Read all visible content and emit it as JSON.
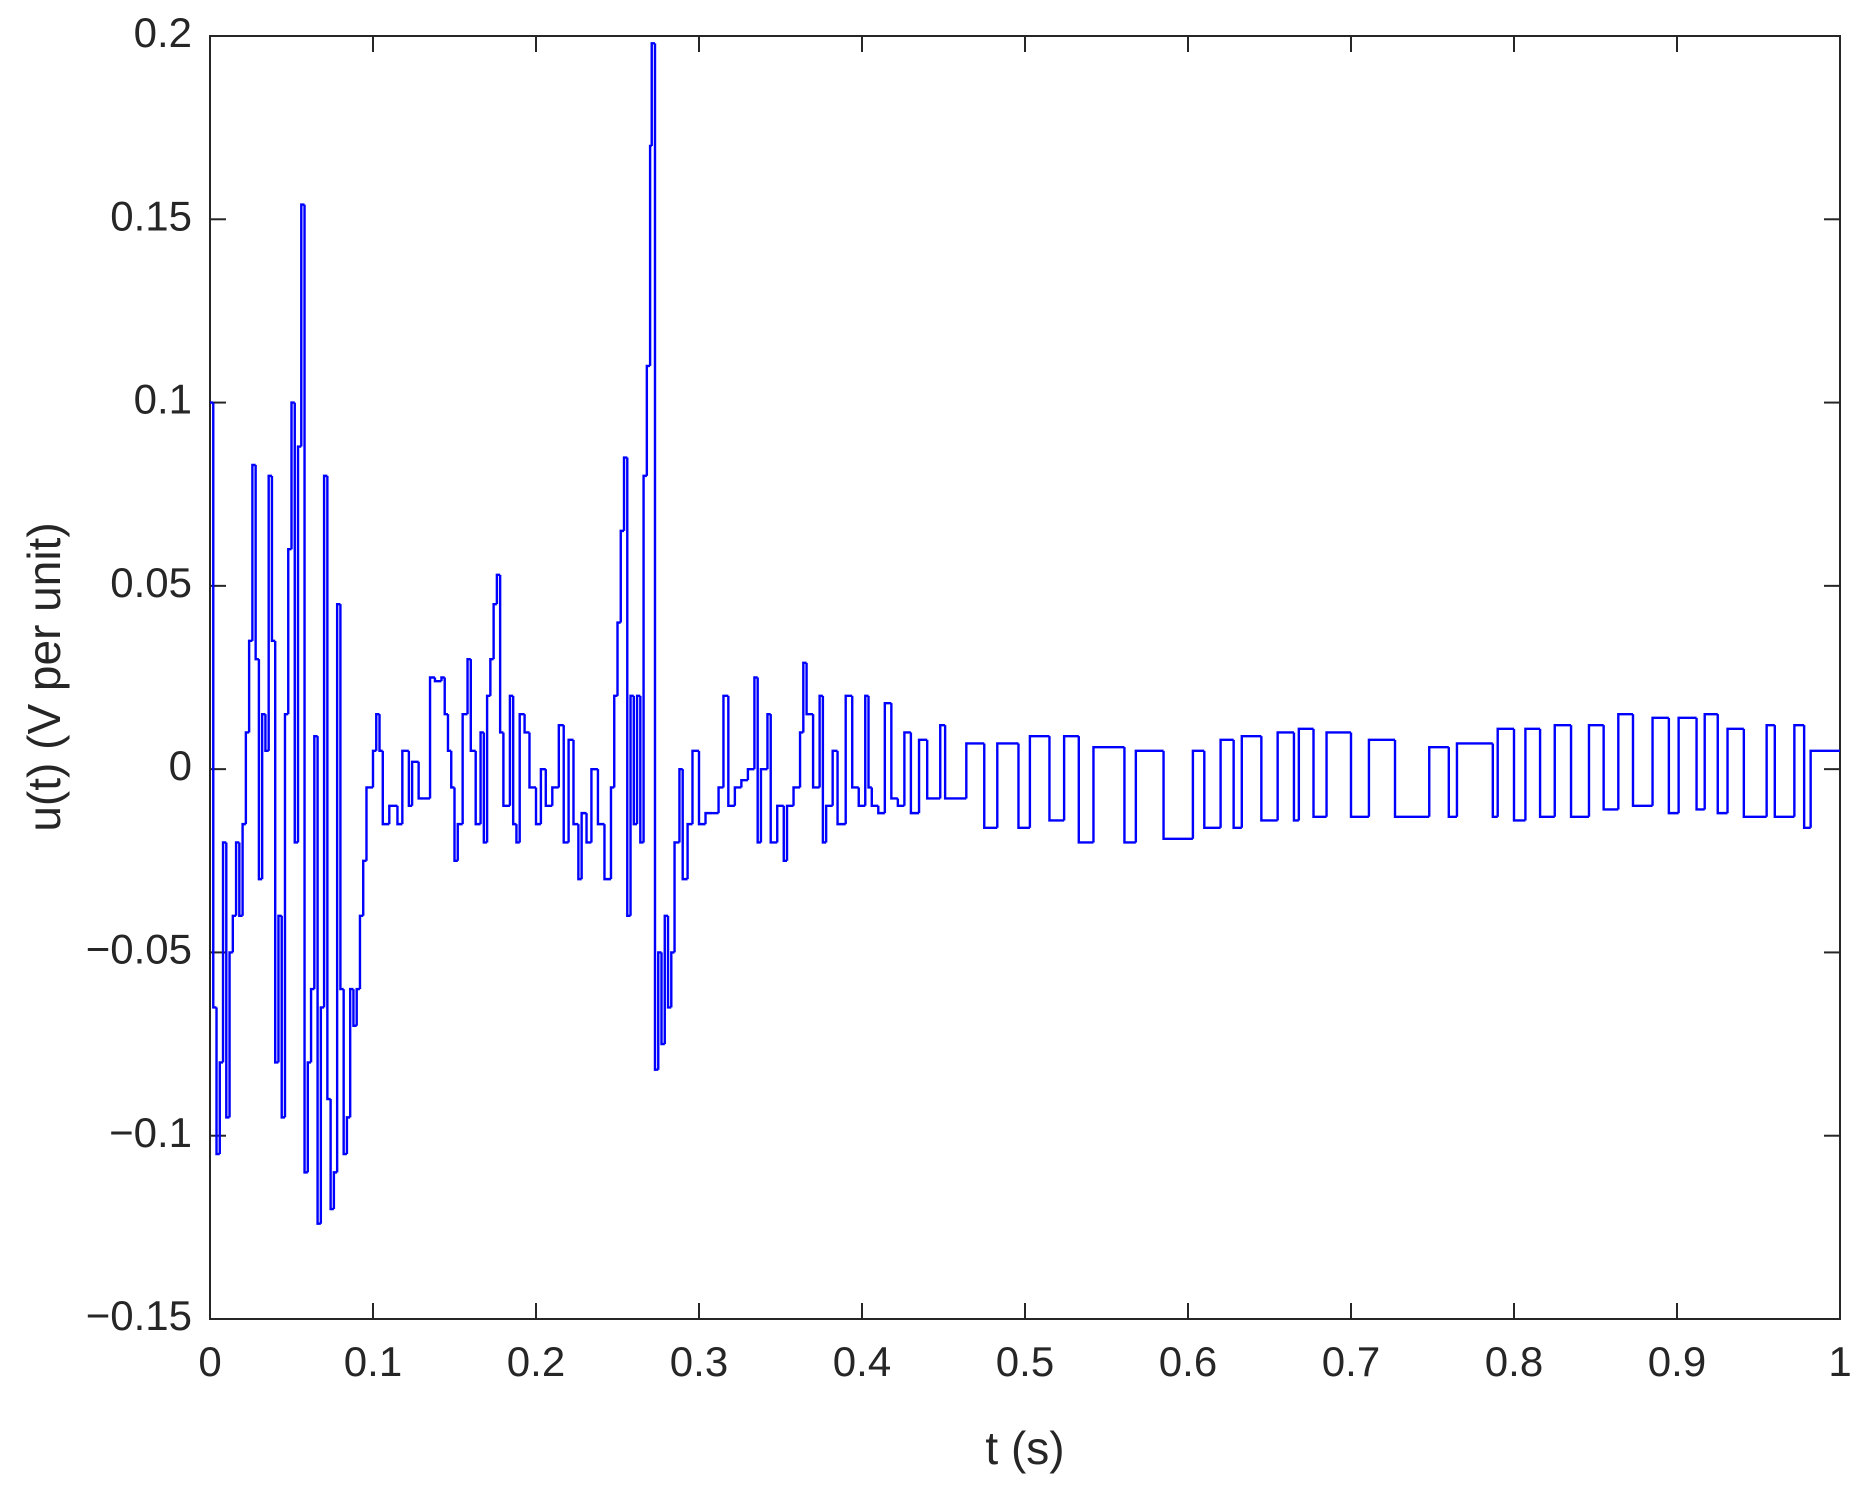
{
  "chart_data": {
    "type": "line",
    "drawstyle": "steps-post",
    "xlabel": "t (s)",
    "ylabel": "u(t) (V per unit)",
    "xlim": [
      0,
      1
    ],
    "ylim": [
      -0.15,
      0.2
    ],
    "xticks": [
      0,
      0.1,
      0.2,
      0.3,
      0.4,
      0.5,
      0.6,
      0.7,
      0.8,
      0.9,
      1
    ],
    "yticks": [
      {
        "value": -0.15,
        "label": "−0.15"
      },
      {
        "value": -0.1,
        "label": "−0.1"
      },
      {
        "value": -0.05,
        "label": "−0.05"
      },
      0,
      0.05,
      0.1,
      0.15,
      0.2
    ],
    "grid": false,
    "series": [
      {
        "color": "#0000ff",
        "x": [
          0,
          0.002,
          0.004,
          0.006,
          0.008,
          0.01,
          0.012,
          0.014,
          0.016,
          0.018,
          0.02,
          0.022,
          0.024,
          0.026,
          0.028,
          0.03,
          0.032,
          0.034,
          0.036,
          0.038,
          0.04,
          0.042,
          0.044,
          0.046,
          0.048,
          0.05,
          0.052,
          0.054,
          0.056,
          0.058,
          0.06,
          0.062,
          0.064,
          0.066,
          0.068,
          0.07,
          0.072,
          0.074,
          0.076,
          0.078,
          0.08,
          0.082,
          0.084,
          0.086,
          0.088,
          0.09,
          0.092,
          0.094,
          0.096,
          0.1,
          0.102,
          0.104,
          0.106,
          0.11,
          0.115,
          0.118,
          0.122,
          0.124,
          0.128,
          0.135,
          0.138,
          0.142,
          0.144,
          0.146,
          0.148,
          0.15,
          0.152,
          0.155,
          0.158,
          0.16,
          0.163,
          0.166,
          0.168,
          0.17,
          0.172,
          0.174,
          0.176,
          0.178,
          0.18,
          0.184,
          0.186,
          0.188,
          0.19,
          0.193,
          0.196,
          0.2,
          0.203,
          0.206,
          0.21,
          0.214,
          0.217,
          0.22,
          0.223,
          0.226,
          0.228,
          0.231,
          0.234,
          0.238,
          0.242,
          0.246,
          0.248,
          0.25,
          0.252,
          0.254,
          0.256,
          0.258,
          0.26,
          0.262,
          0.264,
          0.266,
          0.268,
          0.27,
          0.271,
          0.273,
          0.275,
          0.277,
          0.279,
          0.281,
          0.283,
          0.285,
          0.288,
          0.29,
          0.293,
          0.296,
          0.3,
          0.304,
          0.308,
          0.312,
          0.315,
          0.318,
          0.322,
          0.326,
          0.33,
          0.334,
          0.336,
          0.338,
          0.342,
          0.344,
          0.348,
          0.352,
          0.354,
          0.358,
          0.362,
          0.364,
          0.366,
          0.37,
          0.374,
          0.376,
          0.378,
          0.382,
          0.385,
          0.39,
          0.394,
          0.398,
          0.402,
          0.404,
          0.406,
          0.41,
          0.414,
          0.418,
          0.422,
          0.426,
          0.43,
          0.435,
          0.44,
          0.448,
          0.451,
          0.464,
          0.475,
          0.483,
          0.496,
          0.503,
          0.515,
          0.524,
          0.533,
          0.542,
          0.561,
          0.568,
          0.585,
          0.603,
          0.61,
          0.62,
          0.628,
          0.633,
          0.645,
          0.655,
          0.665,
          0.668,
          0.677,
          0.685,
          0.7,
          0.711,
          0.727,
          0.748,
          0.76,
          0.765,
          0.787,
          0.79,
          0.8,
          0.807,
          0.816,
          0.825,
          0.835,
          0.846,
          0.855,
          0.864,
          0.873,
          0.885,
          0.895,
          0.901,
          0.912,
          0.917,
          0.925,
          0.931,
          0.941,
          0.955,
          0.96,
          0.972,
          0.978,
          0.982
        ],
        "values": [
          0.1,
          -0.065,
          -0.105,
          -0.08,
          -0.02,
          -0.095,
          -0.05,
          -0.04,
          -0.02,
          -0.04,
          -0.015,
          0.01,
          0.035,
          0.083,
          0.03,
          -0.03,
          0.015,
          0.005,
          0.08,
          0.035,
          -0.08,
          -0.04,
          -0.095,
          0.015,
          0.06,
          0.1,
          -0.02,
          0.088,
          0.154,
          -0.11,
          -0.08,
          -0.06,
          0.009,
          -0.124,
          -0.065,
          0.08,
          -0.09,
          -0.12,
          -0.11,
          0.045,
          -0.06,
          -0.105,
          -0.095,
          -0.06,
          -0.07,
          -0.06,
          -0.04,
          -0.025,
          -0.005,
          0.005,
          0.015,
          0.005,
          -0.015,
          -0.01,
          -0.015,
          0.005,
          -0.01,
          0.002,
          -0.008,
          0.025,
          0.024,
          0.025,
          0.015,
          0.005,
          -0.005,
          -0.025,
          -0.015,
          0.015,
          0.03,
          0.005,
          -0.015,
          0.01,
          -0.02,
          0.02,
          0.03,
          0.045,
          0.053,
          0.01,
          -0.01,
          0.02,
          -0.015,
          -0.02,
          0.015,
          0.01,
          -0.005,
          -0.015,
          0.0,
          -0.01,
          -0.005,
          0.012,
          -0.02,
          0.008,
          -0.015,
          -0.03,
          -0.012,
          -0.02,
          0.0,
          -0.015,
          -0.03,
          -0.005,
          0.02,
          0.04,
          0.065,
          0.085,
          -0.04,
          0.02,
          -0.015,
          0.02,
          -0.02,
          0.08,
          0.11,
          0.17,
          0.198,
          -0.082,
          -0.05,
          -0.075,
          -0.04,
          -0.065,
          -0.05,
          -0.02,
          0.0,
          -0.03,
          -0.015,
          0.005,
          -0.015,
          -0.012,
          -0.012,
          -0.005,
          0.02,
          -0.01,
          -0.005,
          -0.003,
          0.0,
          0.025,
          -0.02,
          0.0,
          0.015,
          -0.02,
          -0.01,
          -0.025,
          -0.01,
          -0.005,
          0.01,
          0.029,
          0.015,
          -0.005,
          0.02,
          -0.02,
          -0.01,
          0.005,
          -0.015,
          0.02,
          -0.005,
          -0.01,
          0.02,
          -0.005,
          -0.01,
          -0.012,
          0.018,
          -0.008,
          -0.01,
          0.01,
          -0.012,
          0.008,
          -0.008,
          0.012,
          -0.008,
          0.007,
          -0.016,
          0.007,
          -0.016,
          0.009,
          -0.014,
          0.009,
          -0.02,
          0.006,
          -0.02,
          0.005,
          -0.019,
          0.005,
          -0.016,
          0.008,
          -0.016,
          0.009,
          -0.014,
          0.01,
          -0.014,
          0.011,
          -0.013,
          0.01,
          -0.013,
          0.008,
          -0.013,
          0.006,
          -0.013,
          0.007,
          -0.013,
          0.011,
          -0.014,
          0.011,
          -0.013,
          0.012,
          -0.013,
          0.012,
          -0.011,
          0.015,
          -0.01,
          0.014,
          -0.012,
          0.014,
          -0.011,
          0.015,
          -0.012,
          0.011,
          -0.013,
          0.012,
          -0.013,
          0.012,
          -0.016,
          0.005
        ]
      }
    ]
  }
}
